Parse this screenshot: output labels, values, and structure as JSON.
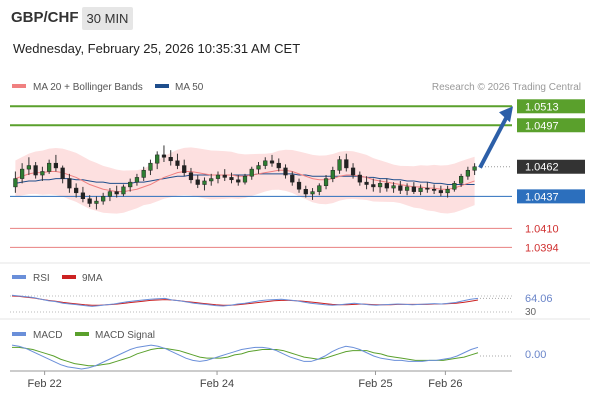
{
  "header": {
    "symbol": "GBP/CHF",
    "timeframe": "30 MIN",
    "datetime": "Wednesday, February 25, 2026 10:35:31 AM CET"
  },
  "legend": {
    "ma20_label": "MA 20 + Bollinger Bands",
    "ma50_label": "MA 50",
    "credit": "Research © 2026 Trading Central"
  },
  "colors": {
    "up": "#3a8a3a",
    "down": "#c0392b",
    "ma20": "#f08080",
    "ma50": "#1f4e8c",
    "bands": "#fde0e0",
    "green_level": "#5aa02c",
    "red_level": "#e88080",
    "blue_level": "#2c6fbd",
    "current": "#333333",
    "rsi": "#6a8fd9",
    "nine_ma": "#cc2222",
    "macd": "#6a8fd9",
    "macd_signal": "#5aa02c",
    "arrow": "#2c5fa8"
  },
  "chart_data": [
    {
      "type": "candlestick",
      "title": "GBP/CHF",
      "ylim": [
        1.0385,
        1.052
      ],
      "x_labels": [
        "Feb 22",
        "Feb 24",
        "Feb 25",
        "Feb 26"
      ],
      "x_label_positions": [
        0.07,
        0.44,
        0.78,
        0.93
      ],
      "levels": [
        {
          "value": "1.0513",
          "kind": "resistance",
          "color": "#5aa02c",
          "style": "badge"
        },
        {
          "value": "1.0497",
          "kind": "resistance",
          "color": "#5aa02c",
          "style": "badge"
        },
        {
          "value": "1.0462",
          "kind": "current",
          "color": "#333333",
          "style": "badge"
        },
        {
          "value": "1.0437",
          "kind": "pivot",
          "color": "#2c6fbd",
          "style": "badge"
        },
        {
          "value": "1.0410",
          "kind": "support",
          "color": "#e88080",
          "style": "text"
        },
        {
          "value": "1.0394",
          "kind": "support",
          "color": "#e88080",
          "style": "text"
        }
      ],
      "candles": [
        [
          1.0445,
          1.0458,
          1.044,
          1.0452
        ],
        [
          1.0452,
          1.0465,
          1.0448,
          1.046
        ],
        [
          1.046,
          1.047,
          1.0455,
          1.0463
        ],
        [
          1.0463,
          1.0466,
          1.0452,
          1.0455
        ],
        [
          1.0455,
          1.0462,
          1.045,
          1.0458
        ],
        [
          1.0458,
          1.0468,
          1.0456,
          1.0465
        ],
        [
          1.0465,
          1.0472,
          1.0458,
          1.0461
        ],
        [
          1.0461,
          1.0463,
          1.0448,
          1.0452
        ],
        [
          1.0452,
          1.0456,
          1.044,
          1.0444
        ],
        [
          1.0444,
          1.0448,
          1.0436,
          1.044
        ],
        [
          1.044,
          1.0445,
          1.0432,
          1.0435
        ],
        [
          1.0435,
          1.0438,
          1.0428,
          1.0431
        ],
        [
          1.0431,
          1.0437,
          1.0426,
          1.0433
        ],
        [
          1.0433,
          1.044,
          1.043,
          1.0437
        ],
        [
          1.0437,
          1.0444,
          1.0433,
          1.0441
        ],
        [
          1.0441,
          1.0446,
          1.0436,
          1.0439
        ],
        [
          1.0439,
          1.0447,
          1.0437,
          1.0445
        ],
        [
          1.0445,
          1.0452,
          1.0441,
          1.0449
        ],
        [
          1.0449,
          1.0456,
          1.0446,
          1.0453
        ],
        [
          1.0453,
          1.0462,
          1.045,
          1.0459
        ],
        [
          1.0459,
          1.0468,
          1.0455,
          1.0465
        ],
        [
          1.0465,
          1.0475,
          1.046,
          1.0472
        ],
        [
          1.0472,
          1.048,
          1.0466,
          1.047
        ],
        [
          1.047,
          1.0476,
          1.0463,
          1.0467
        ],
        [
          1.0467,
          1.0473,
          1.046,
          1.0463
        ],
        [
          1.0463,
          1.0468,
          1.0454,
          1.0457
        ],
        [
          1.0457,
          1.0461,
          1.0448,
          1.0451
        ],
        [
          1.0451,
          1.0455,
          1.0444,
          1.0447
        ],
        [
          1.0447,
          1.0453,
          1.0442,
          1.045
        ],
        [
          1.045,
          1.0456,
          1.0446,
          1.0452
        ],
        [
          1.0452,
          1.0458,
          1.0448,
          1.0455
        ],
        [
          1.0455,
          1.046,
          1.045,
          1.0453
        ],
        [
          1.0453,
          1.0457,
          1.0448,
          1.0451
        ],
        [
          1.0451,
          1.0455,
          1.0446,
          1.0449
        ],
        [
          1.0449,
          1.0456,
          1.0447,
          1.0454
        ],
        [
          1.0454,
          1.0462,
          1.0451,
          1.046
        ],
        [
          1.046,
          1.0466,
          1.0456,
          1.0463
        ],
        [
          1.0463,
          1.047,
          1.046,
          1.0467
        ],
        [
          1.0467,
          1.0472,
          1.0462,
          1.0465
        ],
        [
          1.0465,
          1.0469,
          1.0458,
          1.0461
        ],
        [
          1.0461,
          1.0464,
          1.0452,
          1.0455
        ],
        [
          1.0455,
          1.0458,
          1.0446,
          1.0449
        ],
        [
          1.0449,
          1.0452,
          1.044,
          1.0443
        ],
        [
          1.0443,
          1.0446,
          1.0436,
          1.0439
        ],
        [
          1.0439,
          1.0444,
          1.0434,
          1.0441
        ],
        [
          1.0441,
          1.0448,
          1.0438,
          1.0446
        ],
        [
          1.0446,
          1.0455,
          1.0443,
          1.0452
        ],
        [
          1.0452,
          1.0462,
          1.0449,
          1.0459
        ],
        [
          1.0459,
          1.0471,
          1.0456,
          1.0468
        ],
        [
          1.0468,
          1.0473,
          1.0458,
          1.0461
        ],
        [
          1.0461,
          1.0465,
          1.0452,
          1.0455
        ],
        [
          1.0455,
          1.0458,
          1.0446,
          1.0449
        ],
        [
          1.0449,
          1.0454,
          1.0443,
          1.0447
        ],
        [
          1.0447,
          1.0452,
          1.0441,
          1.0445
        ],
        [
          1.0445,
          1.0451,
          1.044,
          1.0448
        ],
        [
          1.0448,
          1.0452,
          1.0441,
          1.0444
        ],
        [
          1.0444,
          1.0449,
          1.044,
          1.0446
        ],
        [
          1.0446,
          1.045,
          1.0439,
          1.0442
        ],
        [
          1.0442,
          1.0448,
          1.0438,
          1.0445
        ],
        [
          1.0445,
          1.0449,
          1.0439,
          1.0441
        ],
        [
          1.0441,
          1.0447,
          1.0438,
          1.0444
        ],
        [
          1.0444,
          1.0449,
          1.044,
          1.0443
        ],
        [
          1.0443,
          1.0447,
          1.0439,
          1.0442
        ],
        [
          1.0442,
          1.0446,
          1.0437,
          1.044
        ],
        [
          1.044,
          1.0446,
          1.0436,
          1.0443
        ],
        [
          1.0443,
          1.045,
          1.0441,
          1.0448
        ],
        [
          1.0448,
          1.0456,
          1.0445,
          1.0454
        ],
        [
          1.0454,
          1.0462,
          1.0451,
          1.0459
        ],
        [
          1.0459,
          1.0465,
          1.0455,
          1.0462
        ]
      ],
      "ma20": [
        1.0452,
        1.0454,
        1.0456,
        1.0457,
        1.0457,
        1.0458,
        1.0458,
        1.0457,
        1.0455,
        1.0453,
        1.045,
        1.0447,
        1.0445,
        1.0443,
        1.0442,
        1.0441,
        1.0441,
        1.0442,
        1.0443,
        1.0445,
        1.0447,
        1.045,
        1.0453,
        1.0455,
        1.0457,
        1.0458,
        1.0458,
        1.0457,
        1.0456,
        1.0455,
        1.0455,
        1.0455,
        1.0455,
        1.0454,
        1.0454,
        1.0455,
        1.0456,
        1.0457,
        1.0458,
        1.0459,
        1.0459,
        1.0458,
        1.0456,
        1.0454,
        1.0452,
        1.0451,
        1.0451,
        1.0452,
        1.0454,
        1.0455,
        1.0455,
        1.0454,
        1.0453,
        1.0451,
        1.045,
        1.0449,
        1.0448,
        1.0447,
        1.0446,
        1.0445,
        1.0445,
        1.0444,
        1.0444,
        1.0443,
        1.0443,
        1.0444,
        1.0446,
        1.0448,
        1.045
      ],
      "ma50": [
        1.0448,
        1.0449,
        1.045,
        1.045,
        1.0451,
        1.0451,
        1.0452,
        1.0452,
        1.0452,
        1.0451,
        1.0451,
        1.045,
        1.0449,
        1.0449,
        1.0448,
        1.0448,
        1.0448,
        1.0448,
        1.0449,
        1.0449,
        1.045,
        1.0451,
        1.0452,
        1.0453,
        1.0454,
        1.0454,
        1.0455,
        1.0455,
        1.0455,
        1.0455,
        1.0455,
        1.0455,
        1.0455,
        1.0455,
        1.0455,
        1.0455,
        1.0456,
        1.0456,
        1.0456,
        1.0456,
        1.0456,
        1.0456,
        1.0455,
        1.0455,
        1.0454,
        1.0454,
        1.0454,
        1.0454,
        1.0454,
        1.0454,
        1.0454,
        1.0454,
        1.0453,
        1.0453,
        1.0452,
        1.0452,
        1.0451,
        1.0451,
        1.045,
        1.045,
        1.0449,
        1.0449,
        1.0448,
        1.0448,
        1.0447,
        1.0447,
        1.0447,
        1.0447,
        1.0447
      ],
      "band_width": 0.0018,
      "projection_arrow": {
        "from": 1.0462,
        "to": 1.0513
      }
    },
    {
      "type": "line",
      "title": "RSI",
      "series": [
        {
          "name": "RSI"
        },
        {
          "name": "9MA"
        }
      ],
      "ylim": [
        20,
        90
      ],
      "current_value": "64.06",
      "reference_line": "30",
      "rsi": [
        72,
        70,
        68,
        66,
        62,
        58,
        56,
        52,
        50,
        48,
        46,
        44,
        46,
        48,
        50,
        53,
        56,
        58,
        60,
        62,
        63,
        64,
        60,
        58,
        55,
        52,
        50,
        48,
        46,
        45,
        47,
        50,
        52,
        55,
        58,
        60,
        61,
        62,
        60,
        58,
        55,
        52,
        50,
        48,
        47,
        48,
        50,
        52,
        50,
        48,
        47,
        48,
        49,
        50,
        49,
        48,
        49,
        50,
        51,
        50,
        52,
        54,
        58,
        62,
        64
      ],
      "ma9": [
        70,
        69,
        67,
        65,
        62,
        59,
        57,
        54,
        52,
        50,
        48,
        47,
        47,
        48,
        49,
        51,
        53,
        55,
        57,
        59,
        60,
        61,
        60,
        58,
        56,
        54,
        52,
        50,
        48,
        47,
        47,
        48,
        50,
        52,
        54,
        56,
        58,
        59,
        59,
        58,
        57,
        55,
        53,
        51,
        49,
        48,
        48,
        49,
        50,
        49,
        48,
        48,
        48,
        49,
        49,
        49,
        49,
        49,
        50,
        50,
        51,
        52,
        54,
        57,
        60
      ]
    },
    {
      "type": "line",
      "title": "MACD",
      "series": [
        {
          "name": "MACD"
        },
        {
          "name": "MACD Signal"
        }
      ],
      "current_value": "0.00",
      "macd": [
        0.001,
        0.0009,
        0.0007,
        0.0004,
        0.0001,
        -0.0002,
        -0.0005,
        -0.0008,
        -0.001,
        -0.0011,
        -0.0012,
        -0.0011,
        -0.0009,
        -0.0006,
        -0.0003,
        0.0,
        0.0003,
        0.0006,
        0.0008,
        0.0009,
        0.001,
        0.0009,
        0.0007,
        0.0004,
        0.0001,
        -0.0002,
        -0.0004,
        -0.0005,
        -0.0004,
        -0.0002,
        0.0,
        0.0002,
        0.0004,
        0.0006,
        0.0007,
        0.0008,
        0.0008,
        0.0007,
        0.0005,
        0.0002,
        -0.0001,
        -0.0003,
        -0.0005,
        -0.0005,
        -0.0003,
        0.0,
        0.0004,
        0.0007,
        0.0009,
        0.0008,
        0.0006,
        0.0003,
        0.0,
        -0.0002,
        -0.0003,
        -0.0004,
        -0.0004,
        -0.0005,
        -0.0005,
        -0.0005,
        -0.0004,
        -0.0004,
        -0.0003,
        -0.0002,
        0.0,
        0.0003,
        0.0006,
        0.0008
      ],
      "signal": [
        0.0008,
        0.0008,
        0.0007,
        0.0006,
        0.0004,
        0.0002,
        0.0,
        -0.0003,
        -0.0005,
        -0.0007,
        -0.0008,
        -0.0009,
        -0.0009,
        -0.0008,
        -0.0007,
        -0.0005,
        -0.0003,
        -0.0001,
        0.0002,
        0.0004,
        0.0006,
        0.0007,
        0.0007,
        0.0006,
        0.0005,
        0.0003,
        0.0001,
        -0.0001,
        -0.0002,
        -0.0002,
        -0.0002,
        -0.0001,
        0.0001,
        0.0002,
        0.0004,
        0.0005,
        0.0006,
        0.0006,
        0.0006,
        0.0005,
        0.0003,
        0.0001,
        -0.0001,
        -0.0002,
        -0.0003,
        -0.0002,
        0.0,
        0.0002,
        0.0004,
        0.0005,
        0.0005,
        0.0005,
        0.0003,
        0.0002,
        0.0,
        -0.0001,
        -0.0002,
        -0.0003,
        -0.0004,
        -0.0004,
        -0.0004,
        -0.0004,
        -0.0004,
        -0.0003,
        -0.0002,
        -0.0001,
        0.0001,
        0.0003
      ]
    }
  ]
}
